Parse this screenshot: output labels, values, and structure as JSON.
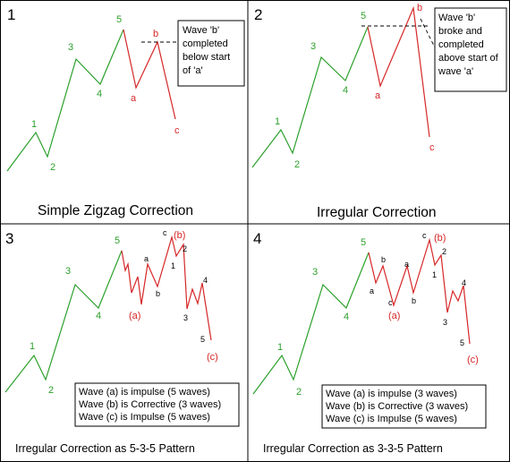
{
  "panels": [
    {
      "number": "1",
      "caption": "Simple Zigzag Correction",
      "wave_labels": {
        "w1": "1",
        "w2": "2",
        "w3": "3",
        "w4": "4",
        "w5": "5",
        "a": "a",
        "b": "b",
        "c": "c"
      },
      "note_lines": [
        "Wave 'b'",
        "completed",
        "below start",
        "of 'a'"
      ]
    },
    {
      "number": "2",
      "caption": "Irregular Correction",
      "wave_labels": {
        "w1": "1",
        "w2": "2",
        "w3": "3",
        "w4": "4",
        "w5": "5",
        "a": "a",
        "b": "b",
        "c": "c"
      },
      "note_lines": [
        "Wave 'b'",
        "broke and",
        "completed",
        "above start of",
        "wave 'a'"
      ]
    },
    {
      "number": "3",
      "caption": "Irregular Correction as 5-3-5 Pattern",
      "wave_labels": {
        "w1": "1",
        "w2": "2",
        "w3": "3",
        "w4": "4",
        "w5": "5",
        "a": "(a)",
        "b": "(b)",
        "c": "(c)"
      },
      "sub_labels": {
        "a": "a",
        "b": "b",
        "c": "c",
        "s1": "1",
        "s2": "2",
        "s3": "3",
        "s4": "4",
        "s5": "5"
      },
      "note_lines": [
        "Wave (a) is impulse (5 waves)",
        "Wave (b) is Corrective (3 waves)",
        "Wave (c) is Impulse (5 waves)"
      ]
    },
    {
      "number": "4",
      "caption": "Irregular Correction as 3-3-5 Pattern",
      "wave_labels": {
        "w1": "1",
        "w2": "2",
        "w3": "3",
        "w4": "4",
        "w5": "5",
        "a": "(a)",
        "b": "(b)",
        "c": "(c)"
      },
      "sub_labels": {
        "a1": "a",
        "b1": "b",
        "c1": "c",
        "a2": "a",
        "b2": "b",
        "c2": "c",
        "s1": "1",
        "s2": "2",
        "s3": "3",
        "s4": "4",
        "s5": "5"
      },
      "note_lines": [
        "Wave (a) is impulse (3 waves)",
        "Wave (b) is Corrective (3 waves)",
        "Wave (c) is Impulse (5 waves)"
      ]
    }
  ],
  "colors": {
    "impulse": "#2ca02c",
    "correction": "#d62728",
    "sub_wave_labels": "#000000"
  }
}
